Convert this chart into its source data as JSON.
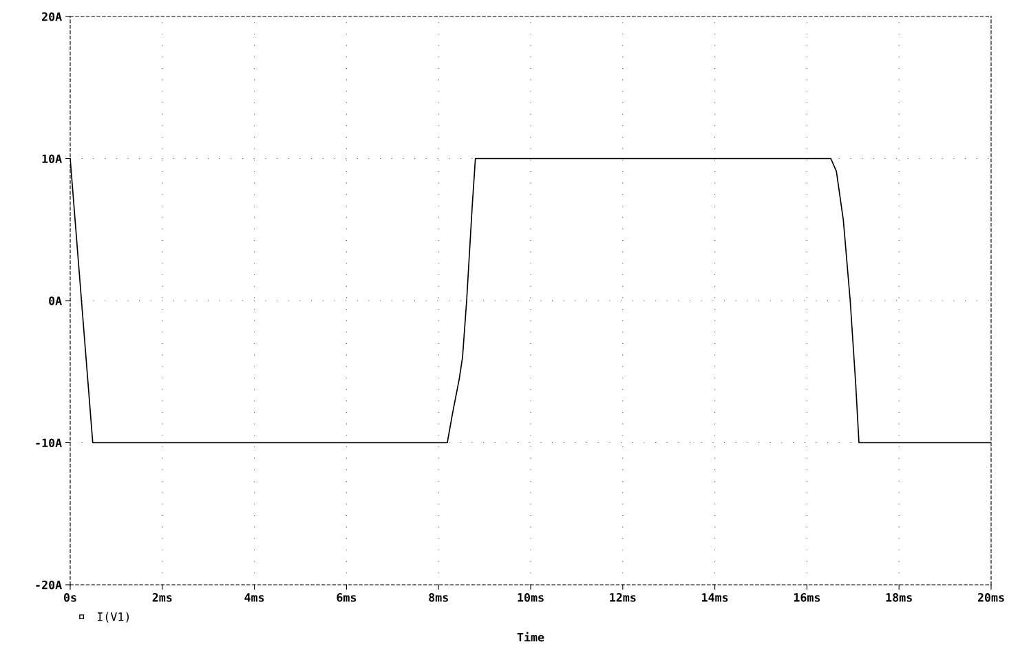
{
  "chart_data": {
    "type": "line",
    "xlabel": "Time",
    "legend": "bottom left",
    "grid": true,
    "marker": "none",
    "line_style": "solid",
    "xlim": [
      0,
      20
    ],
    "ylim": [
      -20,
      20
    ],
    "xticks": [
      {
        "value": 0,
        "label": "0s"
      },
      {
        "value": 2,
        "label": "2ms"
      },
      {
        "value": 4,
        "label": "4ms"
      },
      {
        "value": 6,
        "label": "6ms"
      },
      {
        "value": 8,
        "label": "8ms"
      },
      {
        "value": 10,
        "label": "10ms"
      },
      {
        "value": 12,
        "label": "12ms"
      },
      {
        "value": 14,
        "label": "14ms"
      },
      {
        "value": 16,
        "label": "16ms"
      },
      {
        "value": 18,
        "label": "18ms"
      },
      {
        "value": 20,
        "label": "20ms"
      }
    ],
    "yticks": [
      {
        "value": -20,
        "label": "-20A"
      },
      {
        "value": -10,
        "label": "-10A"
      },
      {
        "value": 0,
        "label": "0A"
      },
      {
        "value": 10,
        "label": "10A"
      },
      {
        "value": 20,
        "label": "20A"
      }
    ],
    "series": [
      {
        "name": "I(V1)",
        "color": "#000000",
        "x": [
          0,
          0.49,
          8.19,
          8.3,
          8.45,
          8.52,
          8.61,
          8.73,
          8.8,
          16.52,
          16.64,
          16.79,
          16.94,
          17.06,
          17.13,
          20
        ],
        "values": [
          10,
          -10,
          -10,
          -8,
          -5.5,
          -4,
          0,
          6.6,
          10,
          10,
          9.1,
          5.7,
          0,
          -5.9,
          -10,
          -10
        ]
      }
    ]
  }
}
